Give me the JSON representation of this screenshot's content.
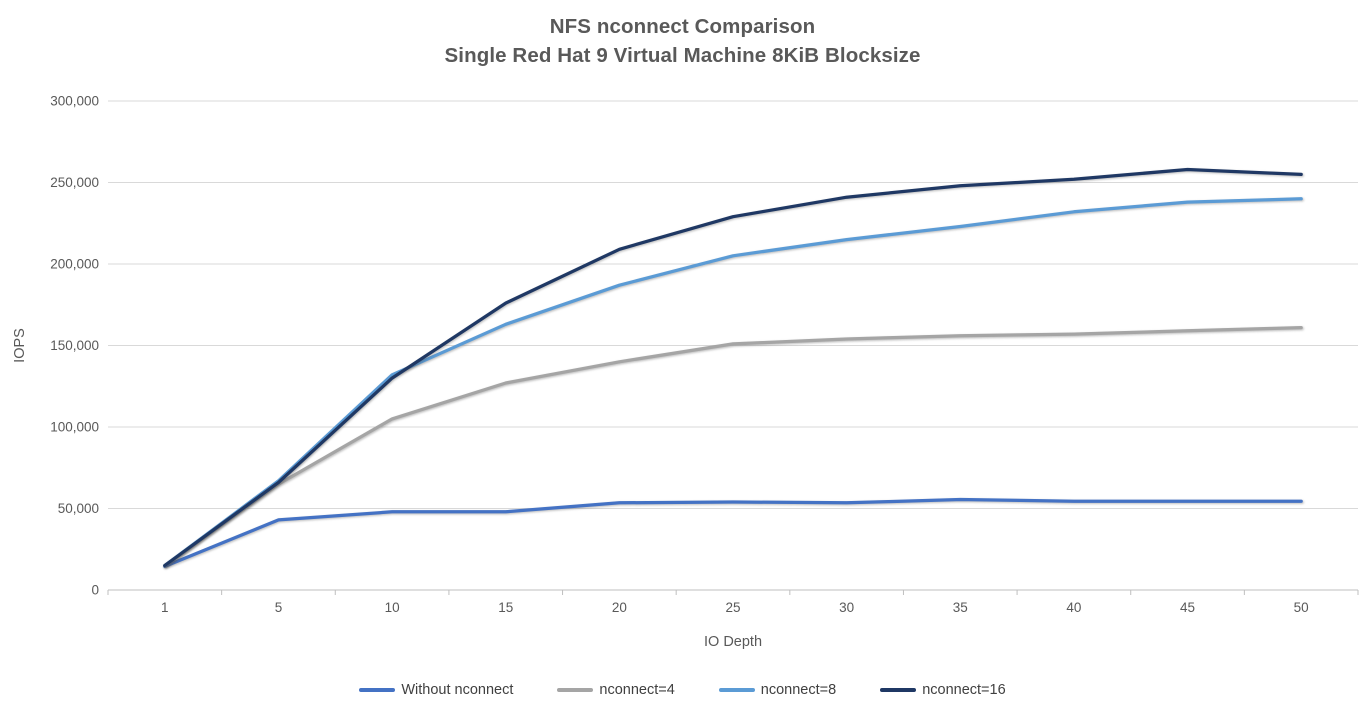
{
  "title": {
    "line1": "NFS nconnect Comparison",
    "line2": "Single Red Hat 9 Virtual Machine 8KiB Blocksize"
  },
  "chart_data": {
    "type": "line",
    "x_axis_type": "category",
    "categories": [
      1,
      5,
      10,
      15,
      20,
      25,
      30,
      35,
      40,
      45,
      50
    ],
    "x_tick_labels": [
      "1",
      "5",
      "10",
      "15",
      "20",
      "25",
      "30",
      "35",
      "40",
      "45",
      "50"
    ],
    "xlabel": "IO Depth",
    "ylabel": "IOPS",
    "ylim": [
      0,
      300000
    ],
    "y_ticks": [
      0,
      50000,
      100000,
      150000,
      200000,
      250000,
      300000
    ],
    "y_tick_labels": [
      "0",
      "50,000",
      "100,000",
      "150,000",
      "200,000",
      "250,000",
      "300,000"
    ],
    "grid": "horizontal",
    "legend_position": "bottom",
    "series": [
      {
        "name": "Without nconnect",
        "color": "#4472C4",
        "values": [
          14500,
          43000,
          48000,
          48000,
          53500,
          54000,
          53500,
          55500,
          54500,
          54500,
          54500
        ]
      },
      {
        "name": "nconnect=4",
        "color": "#A5A5A5",
        "values": [
          15000,
          65000,
          105000,
          127000,
          140000,
          151000,
          154000,
          156000,
          157000,
          159000,
          161000
        ]
      },
      {
        "name": "nconnect=8",
        "color": "#5B9BD5",
        "values": [
          15000,
          67000,
          132000,
          163000,
          187000,
          205000,
          215000,
          223000,
          232000,
          238000,
          240000
        ]
      },
      {
        "name": "nconnect=16",
        "color": "#1F3864",
        "values": [
          15000,
          66000,
          130000,
          176000,
          209000,
          229000,
          241000,
          248000,
          252000,
          258000,
          255000
        ]
      }
    ],
    "colors": {
      "gridline": "#d9d9d9",
      "axis_line": "#bfbfbf",
      "tick_text": "#595959",
      "title_text": "#595959",
      "legend_text": "#404040"
    }
  }
}
